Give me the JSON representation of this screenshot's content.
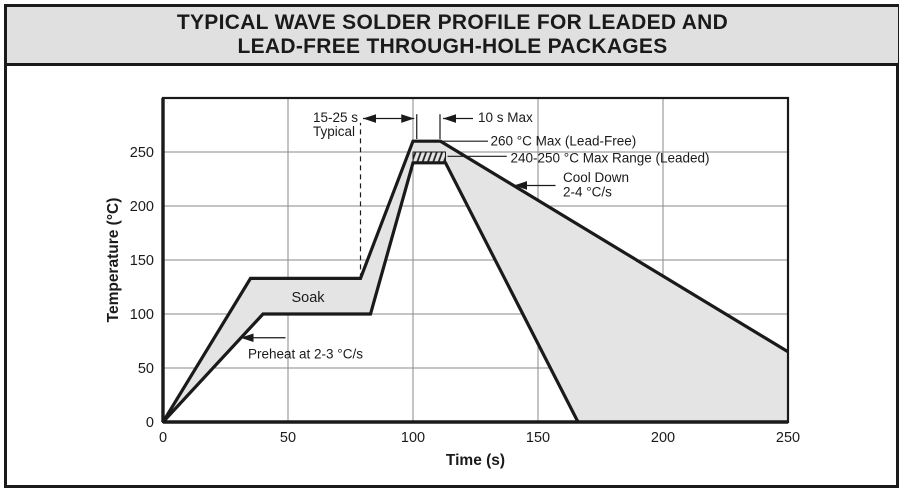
{
  "title": {
    "line1": "TYPICAL WAVE SOLDER PROFILE FOR LEADED AND",
    "line2": "LEAD-FREE THROUGH-HOLE PACKAGES"
  },
  "colors": {
    "line": "#1a1a1a",
    "grid": "#8a8a8a",
    "band_fill": "#e4e4e4",
    "title_bg": "#e0e0e0",
    "paper": "#ffffff"
  },
  "chart_data": {
    "type": "area",
    "title": "Typical wave solder profile for leaded and lead-free through-hole packages",
    "xlabel": "Time (s)",
    "ylabel": "Temperature (°C)",
    "xlim": [
      0,
      250
    ],
    "ylim": [
      0,
      300
    ],
    "xticks": [
      0,
      50,
      100,
      150,
      200,
      250
    ],
    "yticks": [
      0,
      50,
      100,
      150,
      200,
      250
    ],
    "grid": true,
    "legend": "none",
    "series": [
      {
        "id": "upper-limit-profile",
        "points": [
          [
            0,
            0
          ],
          [
            35,
            133
          ],
          [
            79,
            133
          ],
          [
            100,
            260
          ],
          [
            111,
            260
          ],
          [
            250,
            65
          ]
        ]
      },
      {
        "id": "lower-limit-profile",
        "points": [
          [
            0,
            0
          ],
          [
            40,
            100
          ],
          [
            83,
            100
          ],
          [
            100,
            240
          ],
          [
            113,
            240
          ],
          [
            166,
            0
          ]
        ]
      }
    ],
    "hatch_region": {
      "t1": 100,
      "t2": 113,
      "T1": 240,
      "T2": 250
    },
    "annotations": [
      {
        "id": "ramp-window-line1",
        "text": "15-25 s",
        "t": 60,
        "T": 278
      },
      {
        "id": "ramp-window-line2",
        "text": "Typical",
        "t": 60,
        "T": 265
      },
      {
        "id": "peak-duration",
        "text": "10 s Max",
        "t": 126,
        "T": 278
      },
      {
        "id": "peak-lead-free",
        "text": "260 °C Max (Lead-Free)",
        "t": 131,
        "T": 256
      },
      {
        "id": "peak-leaded-range",
        "text": "240-250 °C Max Range (Leaded)",
        "t": 139,
        "T": 240.5
      },
      {
        "id": "cool-down-line1",
        "text": "Cool Down",
        "t": 160,
        "T": 222
      },
      {
        "id": "cool-down-line2",
        "text": "2-4 °C/s",
        "t": 160,
        "T": 209
      },
      {
        "id": "soak-label",
        "text": "Soak",
        "t": 58,
        "T": 111,
        "anchor": "middle",
        "size": 14.5
      },
      {
        "id": "preheat-label",
        "text": "Preheat at 2-3 °C/s",
        "t": 34,
        "T": 59
      }
    ],
    "arrows": [
      {
        "id": "ramp-window-arrow",
        "tip": [
          80,
          281
        ],
        "tail": [
          100.5,
          281
        ],
        "double": true
      },
      {
        "id": "peak-duration-arrow",
        "tip": [
          112,
          281
        ],
        "tail": [
          124,
          281
        ],
        "double": false
      },
      {
        "id": "cool-down-arrow",
        "tip": [
          140.4,
          219
        ],
        "tail": [
          157,
          219
        ],
        "double": false
      },
      {
        "id": "preheat-arrow",
        "tip": [
          31,
          78
        ],
        "tail": [
          49,
          78
        ],
        "double": false
      }
    ],
    "leaders": [
      {
        "id": "leader-260-max",
        "from": [
          111.5,
          260
        ],
        "to": [
          130,
          260
        ]
      },
      {
        "id": "leader-240-250-max",
        "from": [
          113.8,
          246
        ],
        "to": [
          137.5,
          246
        ]
      }
    ],
    "dashed_lines": [
      {
        "id": "soak-end-dashed-line",
        "x": 79,
        "from": 133,
        "to": 277
      }
    ],
    "measure_ticks": [
      {
        "id": "peak-start-tick",
        "x": 101.5,
        "from": 262,
        "to": 285
      },
      {
        "id": "peak-end-tick",
        "x": 110.8,
        "from": 262,
        "to": 285
      }
    ]
  }
}
